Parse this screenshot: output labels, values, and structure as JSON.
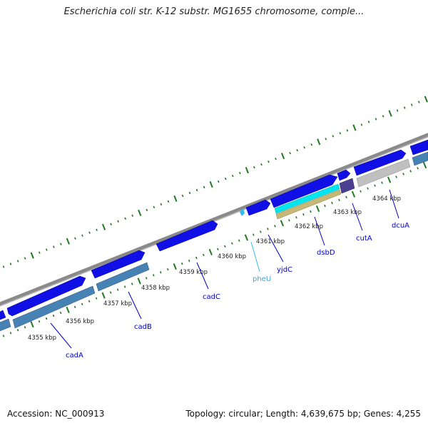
{
  "title": "Escherichia coli str. K-12 substr. MG1655 chromosome, comple...",
  "footer": {
    "accession": "Accession: NC_000913",
    "stats": "Topology: circular; Length: 4,639,675 bp; Genes: 4,255"
  },
  "colors": {
    "cds": "#0a0ae6",
    "cds_reverse_band": "#4682b4",
    "trna": "#33bbee",
    "backbone": "#888888",
    "ticks": "#1f7a1f",
    "cyan_feature": "#00e5ee",
    "tan_feature": "#c8b878",
    "gray_feature": "#c0c0c0",
    "purple_feature": "#4b3f8f",
    "label_cds": "#0000cc",
    "label_trna": "#33aadd"
  },
  "tick_labels": [
    "4355 kbp",
    "4356 kbp",
    "4357 kbp",
    "4358 kbp",
    "4359 kbp",
    "4360 kbp",
    "4361 kbp",
    "4362 kbp",
    "4363 kbp",
    "4364 kbp"
  ],
  "genes": [
    {
      "name": "cadA",
      "type": "cds"
    },
    {
      "name": "cadB",
      "type": "cds"
    },
    {
      "name": "cadC",
      "type": "cds"
    },
    {
      "name": "pheU",
      "type": "trna"
    },
    {
      "name": "yjdC",
      "type": "cds"
    },
    {
      "name": "dsbD",
      "type": "cds"
    },
    {
      "name": "cutA",
      "type": "cds"
    },
    {
      "name": "dcuA",
      "type": "cds"
    }
  ]
}
